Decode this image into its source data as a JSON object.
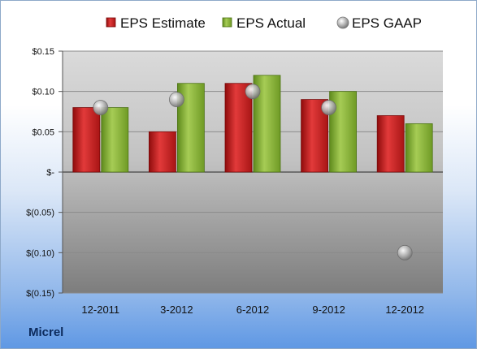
{
  "company": "Micrel",
  "chart_data": {
    "type": "bar",
    "title": "",
    "xlabel": "",
    "ylabel": "",
    "categories": [
      "12-2011",
      "3-2012",
      "6-2012",
      "9-2012",
      "12-2012"
    ],
    "series": [
      {
        "name": "EPS Estimate",
        "kind": "bar",
        "color": "#cc1f1f",
        "values": [
          0.08,
          0.05,
          0.11,
          0.09,
          0.07
        ]
      },
      {
        "name": "EPS Actual",
        "kind": "bar",
        "color": "#8ab43a",
        "values": [
          0.08,
          0.11,
          0.12,
          0.1,
          0.06
        ]
      },
      {
        "name": "EPS GAAP",
        "kind": "scatter",
        "color": "#a9a9a9",
        "values": [
          0.08,
          0.09,
          0.1,
          0.08,
          -0.1
        ]
      }
    ],
    "ylim": [
      -0.15,
      0.15
    ],
    "yticks": [
      0.15,
      0.1,
      0.05,
      0,
      -0.05,
      -0.1,
      -0.15
    ],
    "ytick_labels": [
      "$0.15",
      "$0.10",
      "$0.05",
      "$-",
      "$(0.05)",
      "$(0.10)",
      "$(0.15)"
    ],
    "grid": true,
    "legend": "top-center"
  }
}
